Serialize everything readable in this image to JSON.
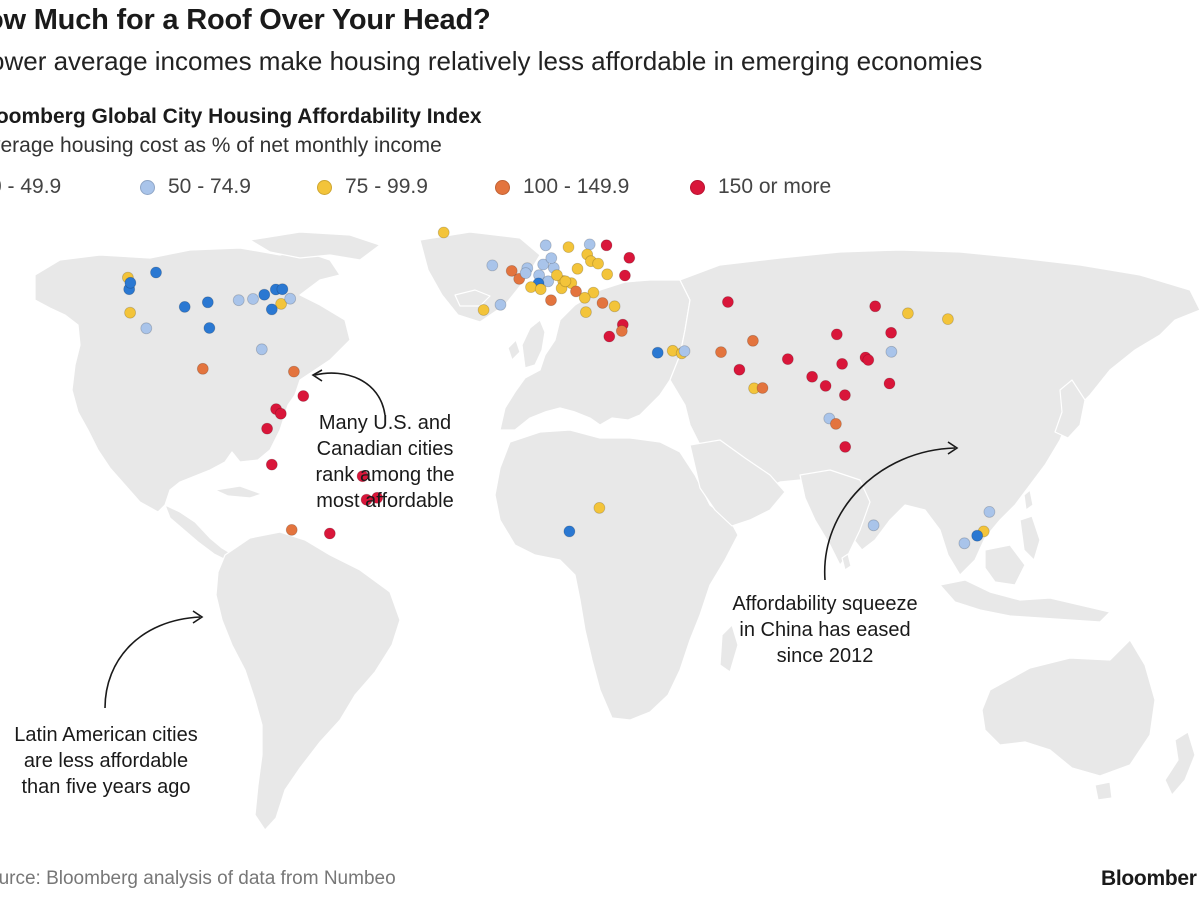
{
  "header": {
    "title": "ow Much for a Roof Over Your Head?",
    "subtitle": "ower average incomes make housing relatively less affordable in emerging economies"
  },
  "index": {
    "title": "loomberg Global City Housing Affordability Index",
    "subtitle": "verage housing cost as % of net monthly income"
  },
  "legend": [
    {
      "label": "0 - 49.9",
      "color": "#2a78d2"
    },
    {
      "label": "50 - 74.9",
      "color": "#a9c4ea"
    },
    {
      "label": "75 - 99.9",
      "color": "#f3c43a"
    },
    {
      "label": "100 - 149.9",
      "color": "#e3743e"
    },
    {
      "label": "150 or more",
      "color": "#d9163a"
    }
  ],
  "annotations": [
    {
      "id": "us-canada",
      "text": "Many U.S. and\nCanadian cities\nrank among the\nmost affordable"
    },
    {
      "id": "china",
      "text": "Affordability squeeze\nin China has eased\nsince 2012"
    },
    {
      "id": "latam",
      "text": "Latin American cities\nare less affordable\nthan five years ago"
    }
  ],
  "footer": {
    "source": "ource: Bloomberg analysis of data from Numbeo",
    "brand": "Bloomber"
  },
  "map": {
    "land_color": "#e8e8e8",
    "border_color": "#ffffff",
    "water_color": "#ffffff",
    "cities": [
      {
        "lon": -123.1,
        "lat": 49.3,
        "tier": 2
      },
      {
        "lon": -122.7,
        "lat": 45.5,
        "tier": 0
      },
      {
        "lon": -122.3,
        "lat": 47.6,
        "tier": 0
      },
      {
        "lon": -114.1,
        "lat": 51.0,
        "tier": 0
      },
      {
        "lon": -122.4,
        "lat": 37.8,
        "tier": 2
      },
      {
        "lon": -117.2,
        "lat": 32.7,
        "tier": 1
      },
      {
        "lon": -97.5,
        "lat": 41.2,
        "tier": 0
      },
      {
        "lon": -104.9,
        "lat": 39.7,
        "tier": 0
      },
      {
        "lon": -97.0,
        "lat": 32.8,
        "tier": 0
      },
      {
        "lon": -79.4,
        "lat": 43.7,
        "tier": 0
      },
      {
        "lon": -75.7,
        "lat": 45.4,
        "tier": 0
      },
      {
        "lon": -73.6,
        "lat": 45.5,
        "tier": 0
      },
      {
        "lon": -87.6,
        "lat": 41.9,
        "tier": 1
      },
      {
        "lon": -74.0,
        "lat": 40.7,
        "tier": 2
      },
      {
        "lon": -77.0,
        "lat": 38.9,
        "tier": 0
      },
      {
        "lon": -71.1,
        "lat": 42.4,
        "tier": 1
      },
      {
        "lon": -83.0,
        "lat": 42.3,
        "tier": 1
      },
      {
        "lon": -80.2,
        "lat": 25.8,
        "tier": 1
      },
      {
        "lon": -99.1,
        "lat": 19.4,
        "tier": 3
      },
      {
        "lon": -69.9,
        "lat": 18.5,
        "tier": 3
      },
      {
        "lon": -75.6,
        "lat": 6.2,
        "tier": 4
      },
      {
        "lon": -66.9,
        "lat": 10.5,
        "tier": 4
      },
      {
        "lon": -74.1,
        "lat": 4.7,
        "tier": 4
      },
      {
        "lon": -78.5,
        "lat": -0.2,
        "tier": 4
      },
      {
        "lon": -77.0,
        "lat": -12.0,
        "tier": 4
      },
      {
        "lon": -47.9,
        "lat": -15.8,
        "tier": 4
      },
      {
        "lon": -46.6,
        "lat": -23.5,
        "tier": 4
      },
      {
        "lon": -43.2,
        "lat": -22.9,
        "tier": 4
      },
      {
        "lon": -70.6,
        "lat": -33.4,
        "tier": 3
      },
      {
        "lon": -58.4,
        "lat": -34.6,
        "tier": 4
      },
      {
        "lon": -21.9,
        "lat": 64.1,
        "tier": 2
      },
      {
        "lon": -9.1,
        "lat": 38.7,
        "tier": 2
      },
      {
        "lon": -3.7,
        "lat": 40.4,
        "tier": 1
      },
      {
        "lon": -6.3,
        "lat": 53.3,
        "tier": 1
      },
      {
        "lon": -0.1,
        "lat": 51.5,
        "tier": 3
      },
      {
        "lon": 2.3,
        "lat": 48.9,
        "tier": 3
      },
      {
        "lon": 4.9,
        "lat": 52.4,
        "tier": 1
      },
      {
        "lon": 4.4,
        "lat": 50.8,
        "tier": 1
      },
      {
        "lon": 8.7,
        "lat": 50.1,
        "tier": 1
      },
      {
        "lon": 13.4,
        "lat": 52.5,
        "tier": 1
      },
      {
        "lon": 10.0,
        "lat": 53.6,
        "tier": 1
      },
      {
        "lon": 11.6,
        "lat": 48.1,
        "tier": 1
      },
      {
        "lon": 8.5,
        "lat": 47.4,
        "tier": 0
      },
      {
        "lon": 6.1,
        "lat": 46.2,
        "tier": 2
      },
      {
        "lon": 9.2,
        "lat": 45.5,
        "tier": 2
      },
      {
        "lon": 12.5,
        "lat": 41.9,
        "tier": 3
      },
      {
        "lon": 16.4,
        "lat": 48.2,
        "tier": 2
      },
      {
        "lon": 14.4,
        "lat": 50.1,
        "tier": 2
      },
      {
        "lon": 19.0,
        "lat": 47.5,
        "tier": 2
      },
      {
        "lon": 21.0,
        "lat": 52.2,
        "tier": 2
      },
      {
        "lon": 12.6,
        "lat": 55.7,
        "tier": 1
      },
      {
        "lon": 10.8,
        "lat": 59.9,
        "tier": 1
      },
      {
        "lon": 18.1,
        "lat": 59.3,
        "tier": 2
      },
      {
        "lon": 24.9,
        "lat": 60.2,
        "tier": 1
      },
      {
        "lon": 24.1,
        "lat": 56.9,
        "tier": 2
      },
      {
        "lon": 25.3,
        "lat": 54.7,
        "tier": 2
      },
      {
        "lon": 27.6,
        "lat": 53.9,
        "tier": 2
      },
      {
        "lon": 30.5,
        "lat": 50.4,
        "tier": 2
      },
      {
        "lon": 30.3,
        "lat": 59.9,
        "tier": 4
      },
      {
        "lon": 37.6,
        "lat": 55.8,
        "tier": 4
      },
      {
        "lon": 36.2,
        "lat": 50.0,
        "tier": 4
      },
      {
        "lon": 26.1,
        "lat": 44.4,
        "tier": 2
      },
      {
        "lon": 20.5,
        "lat": 44.8,
        "tier": 3
      },
      {
        "lon": 23.3,
        "lat": 42.7,
        "tier": 2
      },
      {
        "lon": 23.7,
        "lat": 38.0,
        "tier": 2
      },
      {
        "lon": 29.0,
        "lat": 41.0,
        "tier": 3
      },
      {
        "lon": 32.9,
        "lat": 39.9,
        "tier": 2
      },
      {
        "lon": 35.5,
        "lat": 33.9,
        "tier": 4
      },
      {
        "lon": 35.2,
        "lat": 31.8,
        "tier": 3
      },
      {
        "lon": 31.2,
        "lat": 30.0,
        "tier": 4
      },
      {
        "lon": 15.9,
        "lat": 45.8,
        "tier": 2
      },
      {
        "lon": 17.1,
        "lat": 48.1,
        "tier": 2
      },
      {
        "lon": 46.7,
        "lat": 24.7,
        "tier": 0
      },
      {
        "lon": 51.5,
        "lat": 25.3,
        "tier": 2
      },
      {
        "lon": 54.4,
        "lat": 24.5,
        "tier": 2
      },
      {
        "lon": 55.3,
        "lat": 25.2,
        "tier": 1
      },
      {
        "lon": 69.2,
        "lat": 41.3,
        "tier": 4
      },
      {
        "lon": 67.0,
        "lat": 24.9,
        "tier": 3
      },
      {
        "lon": 77.2,
        "lat": 28.6,
        "tier": 3
      },
      {
        "lon": 72.9,
        "lat": 19.1,
        "tier": 4
      },
      {
        "lon": 77.6,
        "lat": 13.0,
        "tier": 2
      },
      {
        "lon": 80.3,
        "lat": 13.1,
        "tier": 3
      },
      {
        "lon": 88.4,
        "lat": 22.6,
        "tier": 4
      },
      {
        "lon": 116.4,
        "lat": 39.9,
        "tier": 4
      },
      {
        "lon": 121.5,
        "lat": 31.2,
        "tier": 4
      },
      {
        "lon": 113.3,
        "lat": 23.1,
        "tier": 4
      },
      {
        "lon": 114.2,
        "lat": 22.3,
        "tier": 4
      },
      {
        "lon": 104.1,
        "lat": 30.7,
        "tier": 4
      },
      {
        "lon": 126.9,
        "lat": 37.6,
        "tier": 2
      },
      {
        "lon": 139.7,
        "lat": 35.7,
        "tier": 2
      },
      {
        "lon": 121.6,
        "lat": 25.0,
        "tier": 1
      },
      {
        "lon": 121.0,
        "lat": 14.6,
        "tier": 4
      },
      {
        "lon": 100.5,
        "lat": 13.8,
        "tier": 4
      },
      {
        "lon": 96.2,
        "lat": 16.8,
        "tier": 4
      },
      {
        "lon": 105.8,
        "lat": 21.0,
        "tier": 4
      },
      {
        "lon": 106.7,
        "lat": 10.8,
        "tier": 4
      },
      {
        "lon": 101.7,
        "lat": 3.1,
        "tier": 1
      },
      {
        "lon": 103.8,
        "lat": 1.35,
        "tier": 3
      },
      {
        "lon": 106.8,
        "lat": -6.2,
        "tier": 4
      },
      {
        "lon": 28.0,
        "lat": -26.2,
        "tier": 2
      },
      {
        "lon": 18.4,
        "lat": -33.9,
        "tier": 0
      },
      {
        "lon": 115.9,
        "lat": -31.9,
        "tier": 1
      },
      {
        "lon": 151.2,
        "lat": -33.9,
        "tier": 2
      },
      {
        "lon": 149.1,
        "lat": -35.3,
        "tier": 0
      },
      {
        "lon": 145.0,
        "lat": -37.8,
        "tier": 1
      },
      {
        "lon": 153.0,
        "lat": -27.5,
        "tier": 1
      }
    ]
  }
}
